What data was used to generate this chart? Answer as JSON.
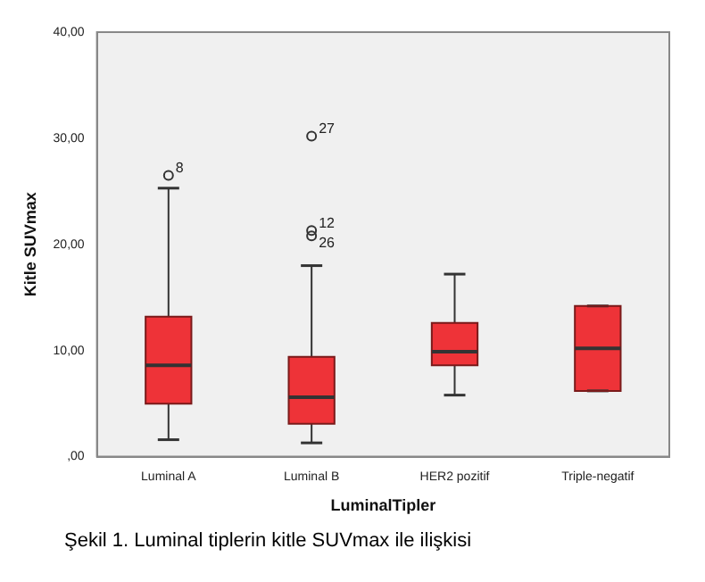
{
  "chart_data": {
    "type": "box",
    "xlabel": "LuminalTipler",
    "ylabel": "Kitle SUVmax",
    "categories": [
      "Luminal A",
      "Luminal B",
      "HER2 pozitif",
      "Triple-negatif"
    ],
    "series": [
      {
        "color": "#ee3338",
        "boxes": [
          {
            "low": 1.6,
            "q1": 5.0,
            "median": 8.6,
            "q3": 13.2,
            "high": 25.3,
            "outliers": [
              26.5
            ]
          },
          {
            "low": 1.3,
            "q1": 3.1,
            "median": 5.6,
            "q3": 9.4,
            "high": 18.0,
            "outliers": [
              21.3,
              20.8,
              30.2
            ]
          },
          {
            "low": 5.8,
            "q1": 8.6,
            "median": 9.9,
            "q3": 12.6,
            "high": 17.2
          },
          {
            "low": 6.2,
            "q1": 6.2,
            "median": 10.2,
            "q3": 14.2,
            "high": 14.2
          }
        ]
      }
    ],
    "ylim": [
      0,
      40
    ],
    "yticks": [
      {
        "value": 0,
        "label": ",00"
      },
      {
        "value": 10,
        "label": "10,00"
      },
      {
        "value": 20,
        "label": "20,00"
      },
      {
        "value": 30,
        "label": "30,00"
      },
      {
        "value": 40,
        "label": "40,00"
      }
    ],
    "annotations": [
      "8",
      "12",
      "26",
      "27",
      "Şekil 1. Luminal tiplerin kitle SUVmax ile ilişkisi"
    ]
  }
}
